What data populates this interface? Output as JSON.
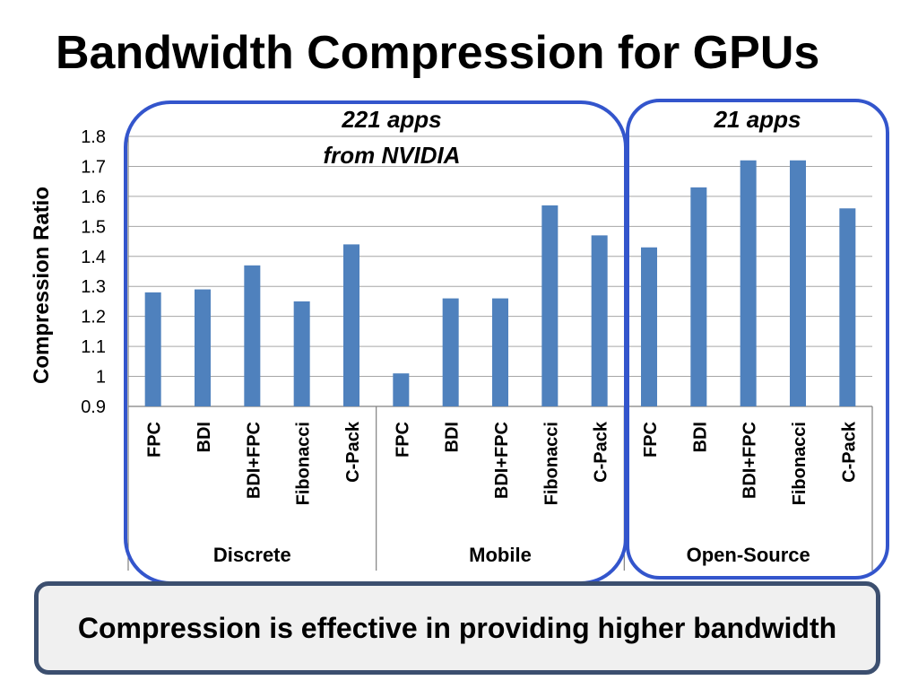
{
  "slide": {
    "title": "Bandwidth Compression for GPUs",
    "conclusion": "Compression is effective in providing higher bandwidth",
    "callouts": [
      {
        "line1": "221 apps",
        "line2": "from NVIDIA"
      },
      {
        "line1": "21 apps",
        "line2": ""
      }
    ]
  },
  "chart_data": {
    "type": "bar",
    "title": "",
    "ylabel": "Compression Ratio",
    "xlabel": "",
    "ylim": [
      0.9,
      1.8
    ],
    "yticks": [
      "0.9",
      "1",
      "1.1",
      "1.2",
      "1.3",
      "1.4",
      "1.5",
      "1.6",
      "1.7",
      "1.8"
    ],
    "grid": true,
    "legend": "none",
    "bar_color": "#4f81bd",
    "highlight_color": "#3355cc",
    "groups": [
      {
        "name": "Discrete",
        "categories": [
          "FPC",
          "BDI",
          "BDI+FPC",
          "Fibonacci",
          "C-Pack"
        ],
        "values": [
          1.28,
          1.29,
          1.37,
          1.25,
          1.44
        ]
      },
      {
        "name": "Mobile",
        "categories": [
          "FPC",
          "BDI",
          "BDI+FPC",
          "Fibonacci",
          "C-Pack"
        ],
        "values": [
          1.01,
          1.26,
          1.26,
          1.57,
          1.47
        ]
      },
      {
        "name": "Open-Source",
        "categories": [
          "FPC",
          "BDI",
          "BDI+FPC",
          "Fibonacci",
          "C-Pack"
        ],
        "values": [
          1.43,
          1.63,
          1.72,
          1.72,
          1.56
        ]
      }
    ]
  }
}
